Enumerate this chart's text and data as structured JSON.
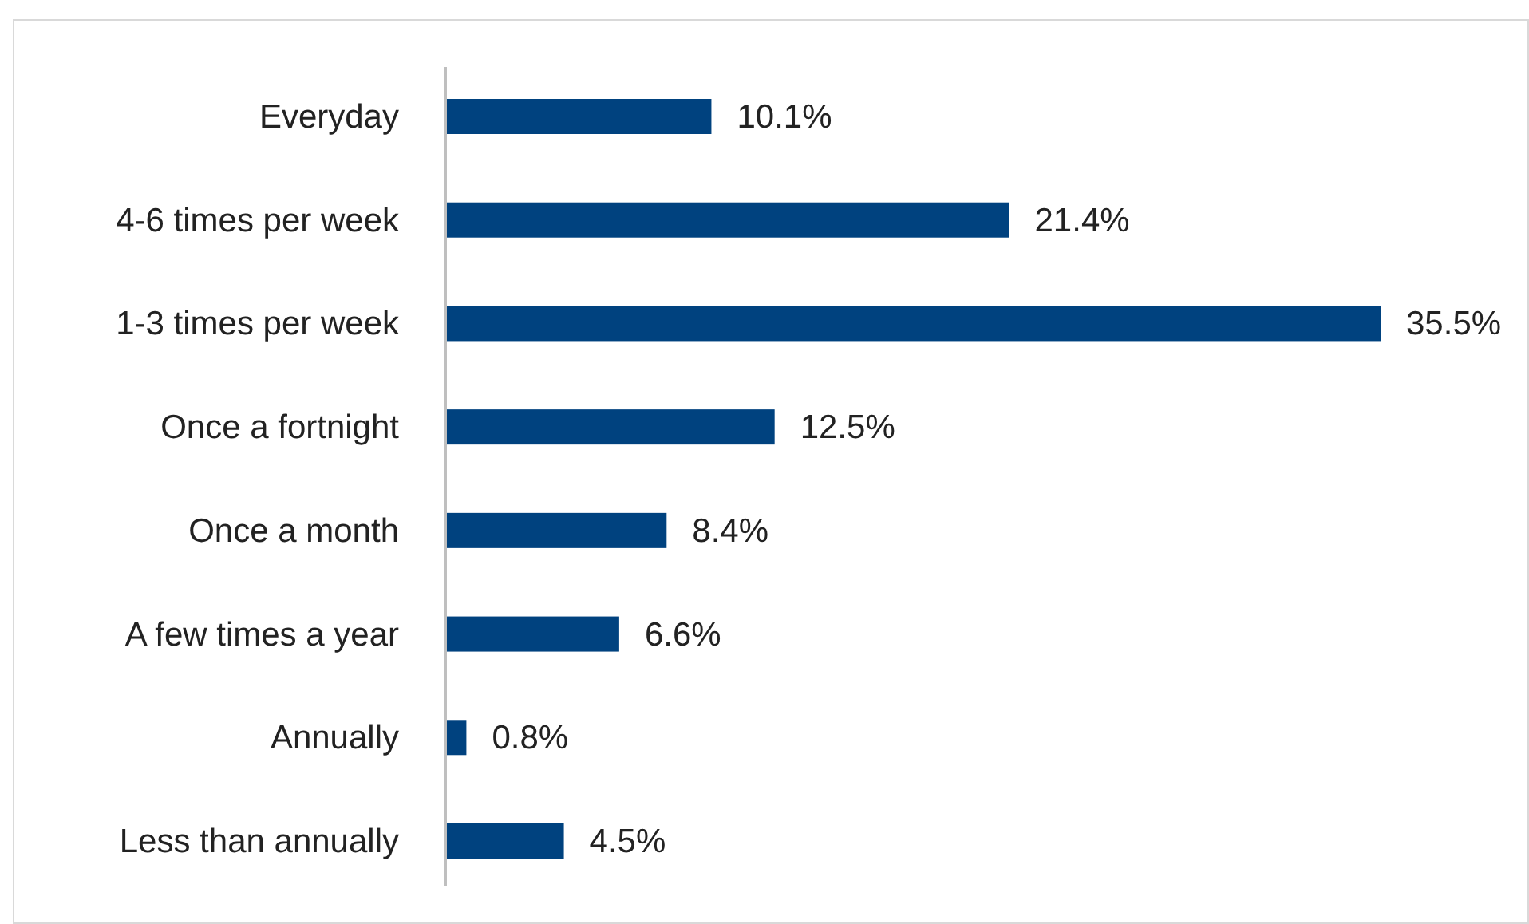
{
  "chart_data": {
    "type": "bar",
    "orientation": "horizontal",
    "categories": [
      "Everyday",
      "4-6 times per week",
      "1-3 times per week",
      "Once a fortnight",
      "Once a month",
      "A few times a year",
      "Annually",
      "Less than annually"
    ],
    "values": [
      10.1,
      21.4,
      35.5,
      12.5,
      8.4,
      6.6,
      0.8,
      4.5
    ],
    "value_labels": [
      "10.1%",
      "21.4%",
      "35.5%",
      "12.5%",
      "8.4%",
      "6.6%",
      "0.8%",
      "4.5%"
    ],
    "color": "#00427f",
    "grid": false,
    "legend": false
  }
}
